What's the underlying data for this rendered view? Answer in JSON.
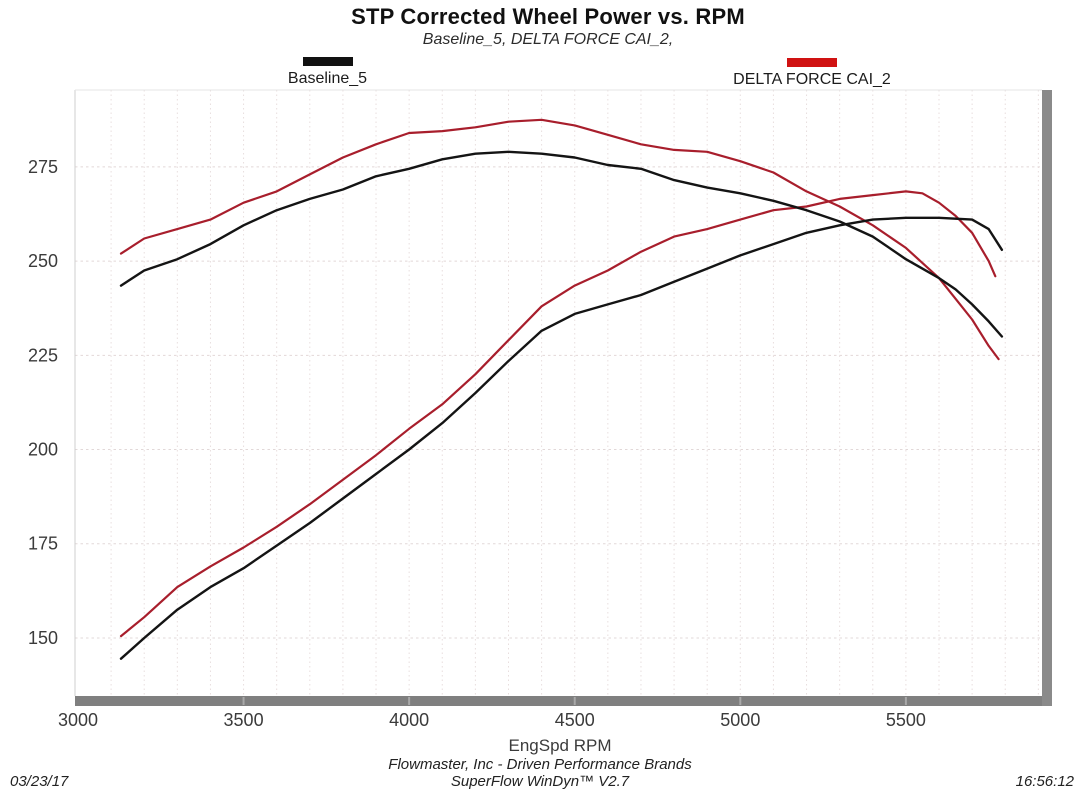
{
  "title": "STP Corrected Wheel Power vs. RPM",
  "subtitle": "Baseline_5, DELTA FORCE CAI_2,",
  "legend": {
    "position": "top",
    "items": [
      {
        "label": "Baseline_5",
        "color": "#111111"
      },
      {
        "label": "DELTA FORCE CAI_2",
        "color": "#d01212"
      }
    ]
  },
  "footer": {
    "date": "03/23/17",
    "company_line": "Flowmaster, Inc - Driven Performance Brands",
    "software_line": "SuperFlow WinDyn™ V2.7",
    "time": "16:56:12"
  },
  "chart_data": {
    "type": "line",
    "title": "STP Corrected Wheel Power vs. RPM",
    "xlabel": "EngSpd RPM",
    "ylabel": "",
    "x_ticks": [
      3000,
      3500,
      4000,
      4500,
      5000,
      5500
    ],
    "y_ticks": [
      150,
      175,
      200,
      225,
      250,
      275
    ],
    "x_range": [
      2991,
      5911
    ],
    "y_range": [
      134.6,
      295.4
    ],
    "grid": {
      "minor_x_step_rpm": 100,
      "minor_color": "#e8dede",
      "major_color": "#e2d8d8"
    },
    "axis_bar_color": "#7f7f7f",
    "series": [
      {
        "name": "DELTA FORCE CAI_2",
        "measure": "upper-curve (torque-like)",
        "color": "#a81e2c",
        "points": [
          [
            3130,
            252
          ],
          [
            3200,
            256
          ],
          [
            3300,
            258.5
          ],
          [
            3400,
            261
          ],
          [
            3500,
            265.5
          ],
          [
            3600,
            268.5
          ],
          [
            3700,
            273
          ],
          [
            3800,
            277.5
          ],
          [
            3900,
            281
          ],
          [
            4000,
            284
          ],
          [
            4100,
            284.5
          ],
          [
            4200,
            285.5
          ],
          [
            4300,
            287
          ],
          [
            4400,
            287.5
          ],
          [
            4500,
            286
          ],
          [
            4600,
            283.5
          ],
          [
            4700,
            281
          ],
          [
            4800,
            279.5
          ],
          [
            4900,
            279
          ],
          [
            5000,
            276.5
          ],
          [
            5100,
            273.5
          ],
          [
            5200,
            268.5
          ],
          [
            5300,
            264.5
          ],
          [
            5400,
            259.5
          ],
          [
            5500,
            253.5
          ],
          [
            5600,
            245.5
          ],
          [
            5650,
            240
          ],
          [
            5700,
            234.5
          ],
          [
            5750,
            227.5
          ],
          [
            5780,
            224
          ]
        ]
      },
      {
        "name": "DELTA FORCE CAI_2",
        "measure": "lower-curve (power)",
        "color": "#a81e2c",
        "points": [
          [
            3130,
            150.5
          ],
          [
            3200,
            155.5
          ],
          [
            3300,
            163.5
          ],
          [
            3400,
            169
          ],
          [
            3500,
            174
          ],
          [
            3600,
            179.5
          ],
          [
            3700,
            185.5
          ],
          [
            3800,
            192
          ],
          [
            3900,
            198.5
          ],
          [
            4000,
            205.5
          ],
          [
            4100,
            212
          ],
          [
            4200,
            220
          ],
          [
            4300,
            229
          ],
          [
            4400,
            238
          ],
          [
            4500,
            243.5
          ],
          [
            4600,
            247.5
          ],
          [
            4700,
            252.5
          ],
          [
            4800,
            256.5
          ],
          [
            4900,
            258.5
          ],
          [
            5000,
            261
          ],
          [
            5100,
            263.5
          ],
          [
            5200,
            264.5
          ],
          [
            5300,
            266.5
          ],
          [
            5400,
            267.5
          ],
          [
            5500,
            268.5
          ],
          [
            5550,
            268
          ],
          [
            5600,
            265.5
          ],
          [
            5650,
            262
          ],
          [
            5700,
            257.5
          ],
          [
            5750,
            250
          ],
          [
            5770,
            246
          ]
        ]
      },
      {
        "name": "Baseline_5",
        "measure": "upper-curve (torque-like)",
        "color": "#141414",
        "points": [
          [
            3130,
            243.5
          ],
          [
            3200,
            247.5
          ],
          [
            3300,
            250.5
          ],
          [
            3400,
            254.5
          ],
          [
            3500,
            259.5
          ],
          [
            3600,
            263.5
          ],
          [
            3700,
            266.5
          ],
          [
            3800,
            269
          ],
          [
            3900,
            272.5
          ],
          [
            4000,
            274.5
          ],
          [
            4100,
            277
          ],
          [
            4200,
            278.5
          ],
          [
            4300,
            279
          ],
          [
            4400,
            278.5
          ],
          [
            4500,
            277.5
          ],
          [
            4600,
            275.5
          ],
          [
            4700,
            274.5
          ],
          [
            4800,
            271.5
          ],
          [
            4900,
            269.5
          ],
          [
            5000,
            268
          ],
          [
            5100,
            266
          ],
          [
            5200,
            263.5
          ],
          [
            5300,
            260.5
          ],
          [
            5400,
            256.5
          ],
          [
            5500,
            250.5
          ],
          [
            5600,
            245.5
          ],
          [
            5650,
            242.5
          ],
          [
            5700,
            238.5
          ],
          [
            5750,
            234
          ],
          [
            5790,
            230
          ]
        ]
      },
      {
        "name": "Baseline_5",
        "measure": "lower-curve (power)",
        "color": "#141414",
        "points": [
          [
            3130,
            144.5
          ],
          [
            3200,
            150
          ],
          [
            3300,
            157.5
          ],
          [
            3400,
            163.5
          ],
          [
            3500,
            168.5
          ],
          [
            3600,
            174.5
          ],
          [
            3700,
            180.5
          ],
          [
            3800,
            187
          ],
          [
            3900,
            193.5
          ],
          [
            4000,
            200
          ],
          [
            4100,
            207
          ],
          [
            4200,
            215
          ],
          [
            4300,
            223.5
          ],
          [
            4400,
            231.5
          ],
          [
            4500,
            236
          ],
          [
            4600,
            238.5
          ],
          [
            4700,
            241
          ],
          [
            4800,
            244.5
          ],
          [
            4900,
            248
          ],
          [
            5000,
            251.5
          ],
          [
            5100,
            254.5
          ],
          [
            5200,
            257.5
          ],
          [
            5300,
            259.5
          ],
          [
            5400,
            261
          ],
          [
            5500,
            261.5
          ],
          [
            5600,
            261.5
          ],
          [
            5700,
            261
          ],
          [
            5750,
            258.5
          ],
          [
            5790,
            253
          ]
        ]
      }
    ]
  }
}
